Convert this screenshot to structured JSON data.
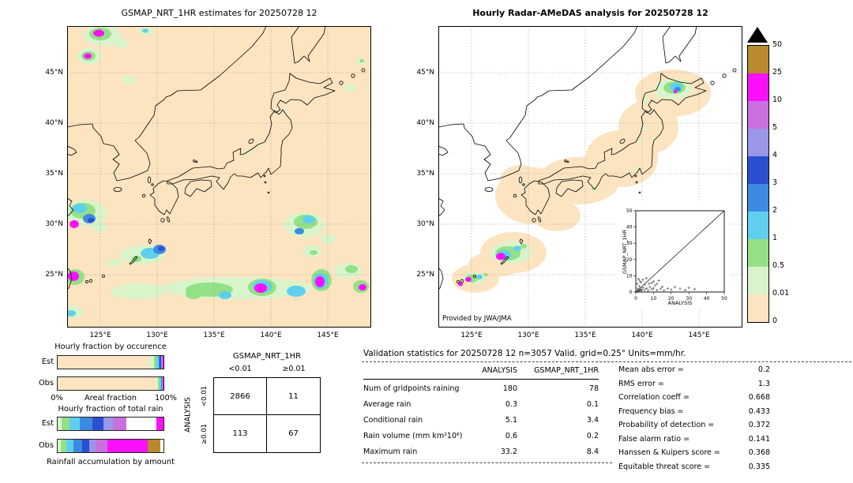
{
  "left_map": {
    "title": "GSMAP_NRT_1HR estimates for 20250728 12",
    "lat_labels": [
      "45°N",
      "40°N",
      "35°N",
      "30°N",
      "25°N"
    ],
    "lon_labels": [
      "125°E",
      "130°E",
      "135°E",
      "140°E",
      "145°E"
    ]
  },
  "right_map": {
    "title": "Hourly Radar-AMeDAS analysis for 20250728 12",
    "credit": "Provided by JWA/JMA",
    "lat_labels": [
      "45°N",
      "40°N",
      "35°N",
      "30°N",
      "25°N"
    ],
    "lon_labels": [
      "125°E",
      "130°E",
      "135°E",
      "140°E",
      "145°E"
    ],
    "inset": {
      "xlabel": "ANALYSIS",
      "ylabel": "GSMAP_NRT_1HR",
      "x_ticks": [
        "0",
        "10",
        "20",
        "30",
        "40",
        "50"
      ],
      "y_ticks": [
        "0",
        "10",
        "20",
        "30",
        "40",
        "50"
      ]
    }
  },
  "colorbar": {
    "labels": [
      "50",
      "25",
      "10",
      "5",
      "4",
      "3",
      "2",
      "1",
      "0.5",
      "0.01",
      "0"
    ],
    "colors": [
      "#b8892e",
      "#fb10fb",
      "#c96fe0",
      "#9a96e8",
      "#2a4fd0",
      "#3c8ae4",
      "#5fcfee",
      "#94e086",
      "#d9f4cb",
      "#fce4c0"
    ]
  },
  "fractions": {
    "occurrence_title": "Hourly fraction by occurence",
    "total_title": "Hourly fraction of total rain",
    "accum_caption": "Rainfall accumulation by amount",
    "areal_axis": {
      "left": "0%",
      "center": "Areal fraction",
      "right": "100%"
    },
    "bar_labels": {
      "est": "Est",
      "obs": "Obs"
    }
  },
  "contingency": {
    "header": "GSMAP_NRT_1HR",
    "col_labels": [
      "<0.01",
      "≥0.01"
    ],
    "row_axis": "ANALYSIS",
    "row_labels": [
      "<0.01",
      "≥0.01"
    ],
    "values": [
      [
        "2866",
        "11"
      ],
      [
        "113",
        "67"
      ]
    ]
  },
  "stats": {
    "title": "Validation statistics for 20250728 12  n=3057 Valid. grid=0.25° Units=mm/hr.",
    "col_headers": [
      "ANALYSIS",
      "GSMAP_NRT_1HR"
    ],
    "rows": [
      {
        "label": "Num of gridpoints raining",
        "analysis": "180",
        "gsmap": "78"
      },
      {
        "label": "Average rain",
        "analysis": "0.3",
        "gsmap": "0.1"
      },
      {
        "label": "Conditional rain",
        "analysis": "5.1",
        "gsmap": "3.4"
      },
      {
        "label": "Rain volume (mm km²10⁶)",
        "analysis": "0.6",
        "gsmap": "0.2"
      },
      {
        "label": "Maximum rain",
        "analysis": "33.2",
        "gsmap": "8.4"
      }
    ],
    "metrics": [
      {
        "label": "Mean abs error =",
        "value": "0.2"
      },
      {
        "label": "RMS error =",
        "value": "1.3"
      },
      {
        "label": "Correlation coeff =",
        "value": "0.668"
      },
      {
        "label": "Frequency bias =",
        "value": "0.433"
      },
      {
        "label": "Probability of detection =",
        "value": "0.372"
      },
      {
        "label": "False alarm ratio =",
        "value": "0.141"
      },
      {
        "label": "Hanssen & Kuipers score =",
        "value": "0.368"
      },
      {
        "label": "Equitable threat score =",
        "value": "0.335"
      }
    ]
  },
  "chart_data": {
    "scale": {
      "type": "colorbar",
      "unit": "mm/hr",
      "values": [
        0,
        0.01,
        0.5,
        1,
        2,
        3,
        4,
        5,
        10,
        25,
        50
      ],
      "colors_low_to_high": [
        "#fce4c0",
        "#d9f4cb",
        "#94e086",
        "#5fcfee",
        "#3c8ae4",
        "#2a4fd0",
        "#9a96e8",
        "#c96fe0",
        "#fb10fb",
        "#b8892e"
      ]
    },
    "inset_scatter": {
      "type": "scatter",
      "xlabel": "ANALYSIS",
      "ylabel": "GSMAP_NRT_1HR",
      "xlim": [
        0,
        50
      ],
      "ylim": [
        0,
        50
      ],
      "diagonal": true,
      "points": [
        [
          0.5,
          0.3
        ],
        [
          1,
          0.8
        ],
        [
          1.2,
          2
        ],
        [
          1.5,
          0.5
        ],
        [
          2,
          1.2
        ],
        [
          2,
          3.5
        ],
        [
          2.5,
          0.7
        ],
        [
          3,
          1.8
        ],
        [
          3,
          6
        ],
        [
          3.5,
          1
        ],
        [
          4,
          2.6
        ],
        [
          4,
          7.5
        ],
        [
          5,
          1.4
        ],
        [
          5,
          4.5
        ],
        [
          6,
          2.2
        ],
        [
          6,
          8.4
        ],
        [
          7,
          1
        ],
        [
          7.5,
          5
        ],
        [
          8,
          3
        ],
        [
          9,
          1.6
        ],
        [
          9,
          5.5
        ],
        [
          10,
          2.4
        ],
        [
          10,
          6.5
        ],
        [
          11,
          4
        ],
        [
          12,
          1.2
        ],
        [
          12,
          5
        ],
        [
          13,
          7
        ],
        [
          14,
          2
        ],
        [
          15,
          3.2
        ],
        [
          16,
          1
        ],
        [
          18,
          2.2
        ],
        [
          20,
          1.5
        ],
        [
          22,
          3
        ],
        [
          25,
          2
        ],
        [
          28,
          1.2
        ],
        [
          30,
          2.5
        ],
        [
          33.2,
          1.8
        ],
        [
          0.8,
          5
        ],
        [
          1.5,
          8
        ],
        [
          2.2,
          6.8
        ]
      ]
    },
    "occurrence_bars": {
      "type": "bar",
      "stacked": true,
      "categories": [
        "Est",
        "Obs"
      ],
      "est": [
        {
          "color": "#fce4c0",
          "pct": 86.5
        },
        {
          "color": "#d9f4cb",
          "pct": 4.2
        },
        {
          "color": "#94e086",
          "pct": 2.6
        },
        {
          "color": "#5fcfee",
          "pct": 2.0
        },
        {
          "color": "#3c8ae4",
          "pct": 1.3
        },
        {
          "color": "#2a4fd0",
          "pct": 0.9
        },
        {
          "color": "#9a96e8",
          "pct": 0.7
        },
        {
          "color": "#c96fe0",
          "pct": 0.9
        },
        {
          "color": "#fb10fb",
          "pct": 0.9
        }
      ],
      "obs": [
        {
          "color": "#fce4c0",
          "pct": 92.2
        },
        {
          "color": "#d9f4cb",
          "pct": 2.8
        },
        {
          "color": "#94e086",
          "pct": 1.6
        },
        {
          "color": "#5fcfee",
          "pct": 1.1
        },
        {
          "color": "#3c8ae4",
          "pct": 0.7
        },
        {
          "color": "#2a4fd0",
          "pct": 0.4
        },
        {
          "color": "#9a96e8",
          "pct": 0.3
        },
        {
          "color": "#c96fe0",
          "pct": 0.5
        },
        {
          "color": "#fb10fb",
          "pct": 0.4
        }
      ]
    },
    "total_rain_bars": {
      "type": "bar",
      "stacked": true,
      "categories": [
        "Est",
        "Obs"
      ],
      "est": [
        {
          "color": "#d9f4cb",
          "pct": 4
        },
        {
          "color": "#94e086",
          "pct": 7
        },
        {
          "color": "#5fcfee",
          "pct": 10
        },
        {
          "color": "#3c8ae4",
          "pct": 12
        },
        {
          "color": "#2a4fd0",
          "pct": 10
        },
        {
          "color": "#9a96e8",
          "pct": 9
        },
        {
          "color": "#c96fe0",
          "pct": 13
        },
        {
          "color": "#ffffff",
          "pct": 28
        },
        {
          "color": "#fb10fb",
          "pct": 7
        }
      ],
      "obs": [
        {
          "color": "#d9f4cb",
          "pct": 3
        },
        {
          "color": "#94e086",
          "pct": 5
        },
        {
          "color": "#5fcfee",
          "pct": 7
        },
        {
          "color": "#3c8ae4",
          "pct": 8
        },
        {
          "color": "#2a4fd0",
          "pct": 7
        },
        {
          "color": "#9a96e8",
          "pct": 6
        },
        {
          "color": "#c96fe0",
          "pct": 11
        },
        {
          "color": "#fb10fb",
          "pct": 38
        },
        {
          "color": "#b8892e",
          "pct": 12
        },
        {
          "color": "#ffffff",
          "pct": 3
        }
      ]
    },
    "contingency_table": {
      "type": "table",
      "col_labels": [
        "<0.01",
        "≥0.01"
      ],
      "row_labels": [
        "<0.01",
        "≥0.01"
      ],
      "values": [
        [
          2866,
          11
        ],
        [
          113,
          67
        ]
      ]
    },
    "validation_table": {
      "type": "table",
      "columns": [
        "ANALYSIS",
        "GSMAP_NRT_1HR"
      ],
      "rows": [
        [
          "Num of gridpoints raining",
          180,
          78
        ],
        [
          "Average rain",
          0.3,
          0.1
        ],
        [
          "Conditional rain",
          5.1,
          3.4
        ],
        [
          "Rain volume (mm km²10⁶)",
          0.6,
          0.2
        ],
        [
          "Maximum rain",
          33.2,
          8.4
        ]
      ]
    }
  }
}
